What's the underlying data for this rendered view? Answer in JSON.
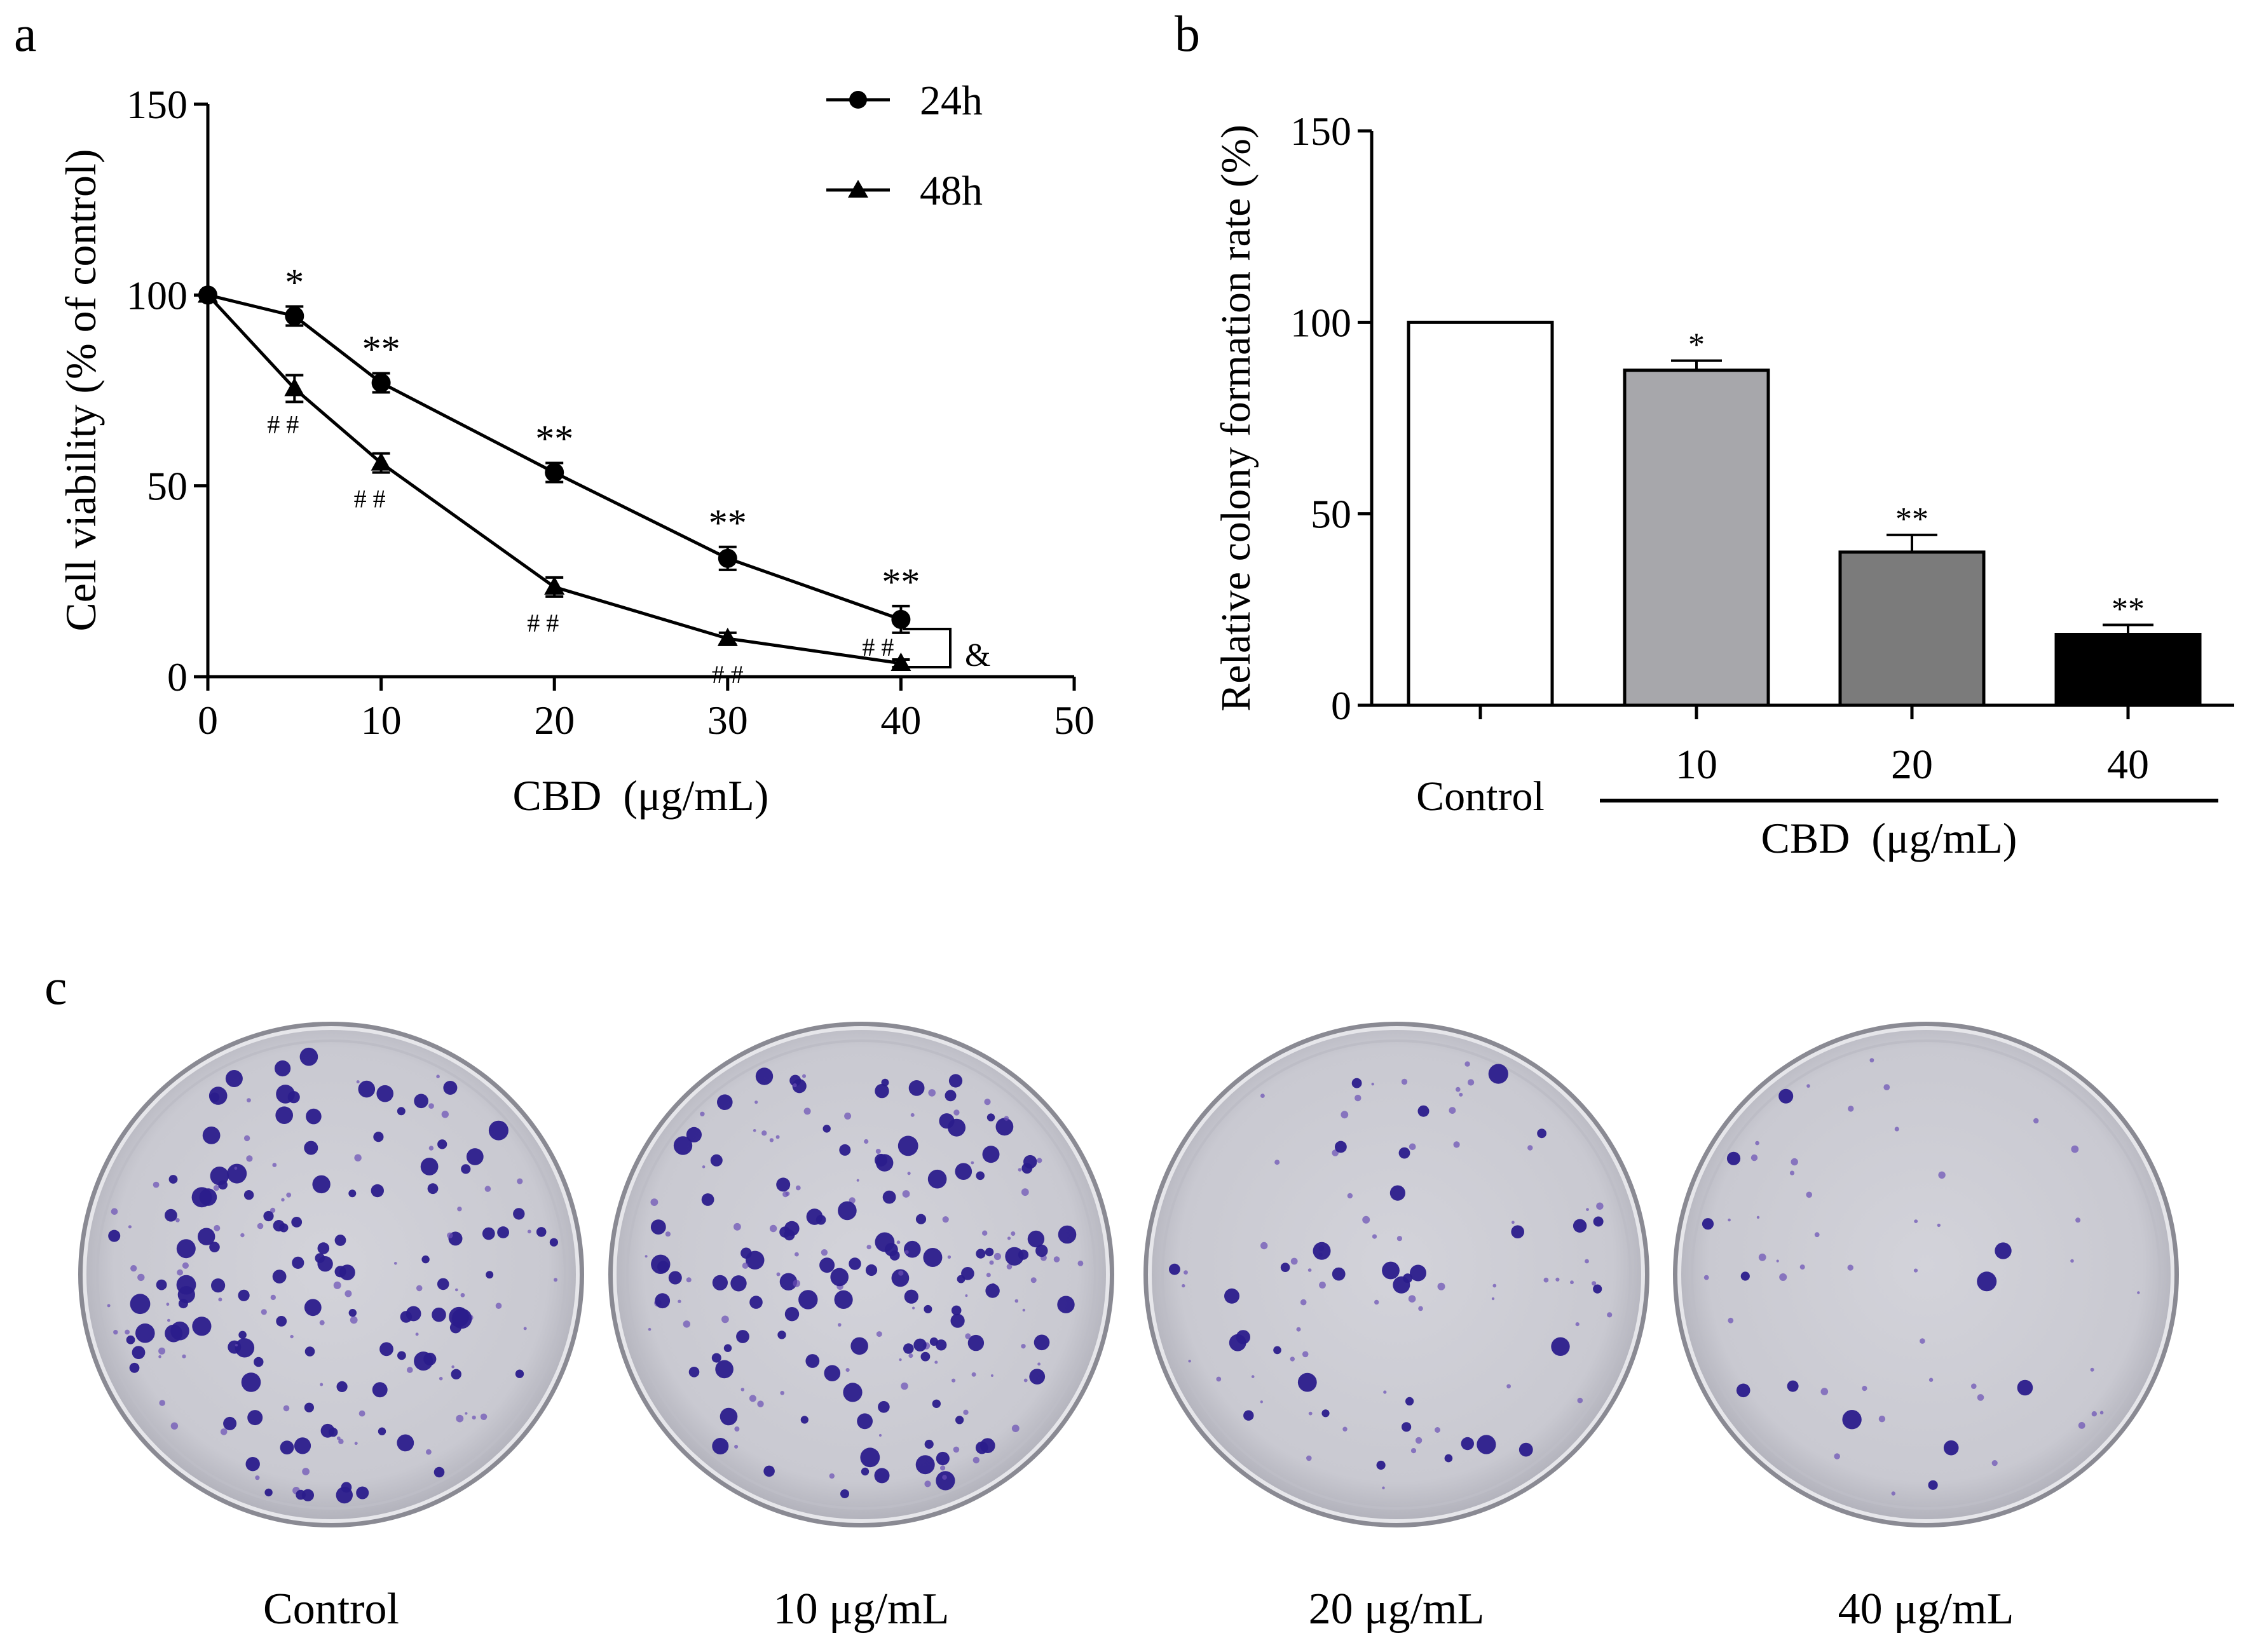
{
  "panels": {
    "a": "a",
    "b": "b",
    "c": "c"
  },
  "chart_data": [
    {
      "panel": "a",
      "type": "line",
      "x": [
        0,
        5,
        10,
        20,
        30,
        40
      ],
      "xlabel": "CBD  (μg/mL)",
      "ylabel": "Cell viability (% of control)",
      "xlim": [
        0,
        50
      ],
      "ylim": [
        0,
        150
      ],
      "xticks": [
        0,
        10,
        20,
        30,
        40,
        50
      ],
      "yticks": [
        0,
        50,
        100,
        150
      ],
      "grid": false,
      "legend_position": "top-right",
      "series": [
        {
          "name": "24h",
          "marker": "circle",
          "values": [
            100,
            94.5,
            77,
            53.5,
            31,
            15
          ],
          "errors": [
            0,
            2.5,
            2.5,
            2.5,
            3,
            3.5
          ],
          "annotations": [
            "",
            "*",
            "**",
            "**",
            "**",
            "**"
          ]
        },
        {
          "name": "48h",
          "marker": "triangle",
          "values": [
            100,
            75.5,
            56,
            23.5,
            10,
            3.5
          ],
          "errors": [
            0,
            3.5,
            2.5,
            2.5,
            1.5,
            1
          ],
          "annotations": [
            "",
            "# #",
            "# #",
            "# #",
            "# #",
            "# #"
          ]
        }
      ],
      "bracket_label": "&"
    },
    {
      "panel": "b",
      "type": "bar",
      "categories": [
        "Control",
        "10",
        "20",
        "40"
      ],
      "values": [
        100,
        87.5,
        40,
        18.5
      ],
      "errors": [
        0,
        2.5,
        4.5,
        2.5
      ],
      "annotations": [
        "",
        "*",
        "**",
        "**"
      ],
      "colors": [
        "#ffffff",
        "#a7a7ab",
        "#7b7b7b",
        "#000000"
      ],
      "ylabel": "Relative colony formation rate (%)",
      "xlabel": "CBD  (μg/mL)",
      "ylim": [
        0,
        150
      ],
      "yticks": [
        0,
        50,
        100,
        150
      ],
      "grid": false
    }
  ],
  "plates": {
    "labels": [
      "Control",
      "10 μg/mL",
      "20 μg/mL",
      "40 μg/mL"
    ]
  }
}
